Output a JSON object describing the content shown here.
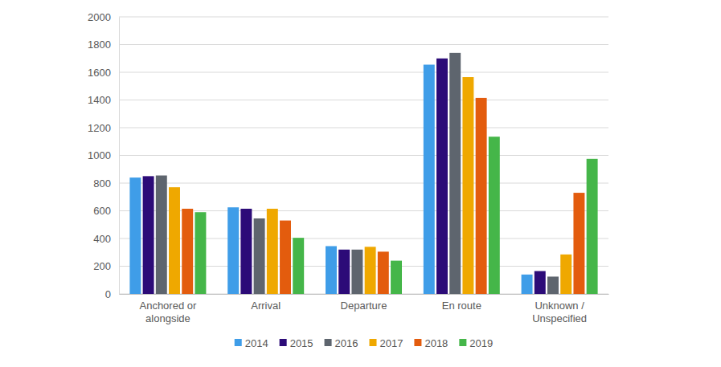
{
  "chart_data": {
    "type": "bar",
    "categories": [
      "Anchored or alongside",
      "Arrival",
      "Departure",
      "En route",
      "Unknown / Unspecified"
    ],
    "series": [
      {
        "name": "2014",
        "color": "#3f9de8",
        "values": [
          840,
          625,
          345,
          1655,
          140
        ]
      },
      {
        "name": "2015",
        "color": "#2c0b78",
        "values": [
          850,
          615,
          320,
          1700,
          165
        ]
      },
      {
        "name": "2016",
        "color": "#5e656e",
        "values": [
          855,
          545,
          320,
          1740,
          125
        ]
      },
      {
        "name": "2017",
        "color": "#efa800",
        "values": [
          770,
          615,
          340,
          1565,
          285
        ]
      },
      {
        "name": "2018",
        "color": "#e35c0e",
        "values": [
          615,
          530,
          305,
          1415,
          730
        ]
      },
      {
        "name": "2019",
        "color": "#45b649",
        "values": [
          590,
          405,
          240,
          1135,
          975
        ]
      }
    ],
    "ylim": [
      0,
      2000
    ],
    "yticks": [
      0,
      200,
      400,
      600,
      800,
      1000,
      1200,
      1400,
      1600,
      1800,
      2000
    ],
    "grid": true,
    "legend": "bottom"
  }
}
